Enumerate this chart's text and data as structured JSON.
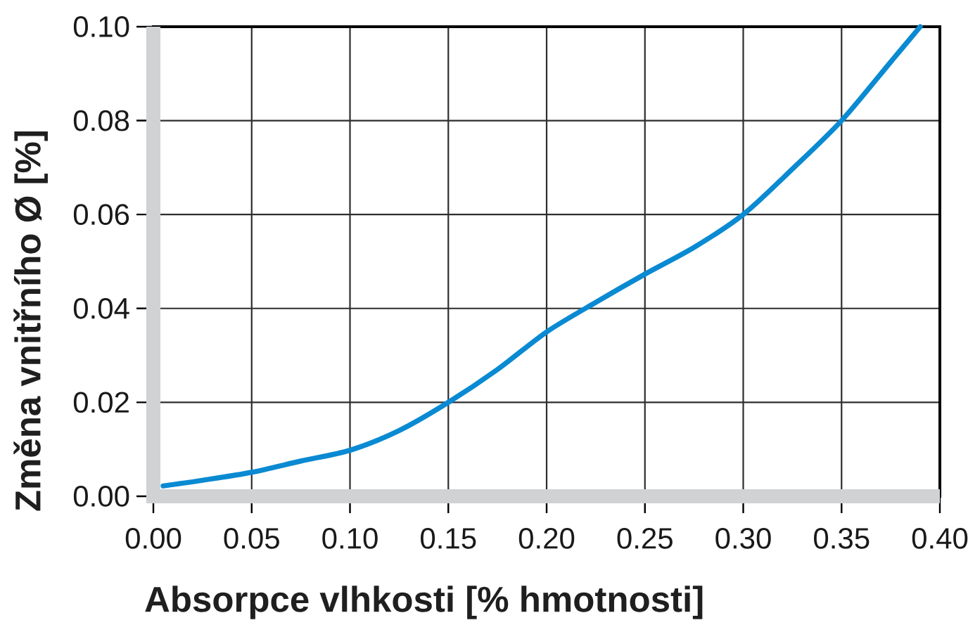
{
  "chart_data": {
    "type": "line",
    "xlabel": "Absorpce vlhkosti [% hmotnosti]",
    "ylabel": "Změna vnitřního Ø [%]",
    "x": [
      0.005,
      0.025,
      0.05,
      0.075,
      0.1,
      0.125,
      0.15,
      0.175,
      0.2,
      0.225,
      0.25,
      0.275,
      0.3,
      0.325,
      0.35,
      0.375,
      0.39
    ],
    "series": [
      {
        "color": "#0a8ad2",
        "values": [
          0.0022,
          0.0034,
          0.0051,
          0.0075,
          0.0098,
          0.014,
          0.02,
          0.027,
          0.035,
          0.0413,
          0.0473,
          0.053,
          0.06,
          0.0697,
          0.08,
          0.0925,
          0.1
        ]
      }
    ],
    "xlim": [
      0,
      0.4
    ],
    "ylim": [
      0,
      0.1
    ],
    "xticks": [
      {
        "value": 0,
        "label": "0.00"
      },
      {
        "value": 0.05,
        "label": "0.05"
      },
      {
        "value": 0.1,
        "label": "0.10"
      },
      {
        "value": 0.15,
        "label": "0.15"
      },
      {
        "value": 0.2,
        "label": "0.20"
      },
      {
        "value": 0.25,
        "label": "0.25"
      },
      {
        "value": 0.3,
        "label": "0.30"
      },
      {
        "value": 0.35,
        "label": "0.35"
      },
      {
        "value": 0.4,
        "label": "0.40"
      }
    ],
    "yticks": [
      {
        "value": 0,
        "label": "0.00"
      },
      {
        "value": 0.02,
        "label": "0.02"
      },
      {
        "value": 0.04,
        "label": "0.04"
      },
      {
        "value": 0.06,
        "label": "0.06"
      },
      {
        "value": 0.08,
        "label": "0.08"
      },
      {
        "value": 0.1,
        "label": "0.10"
      }
    ],
    "grid": true,
    "marker": "none",
    "line_style": "solid"
  }
}
